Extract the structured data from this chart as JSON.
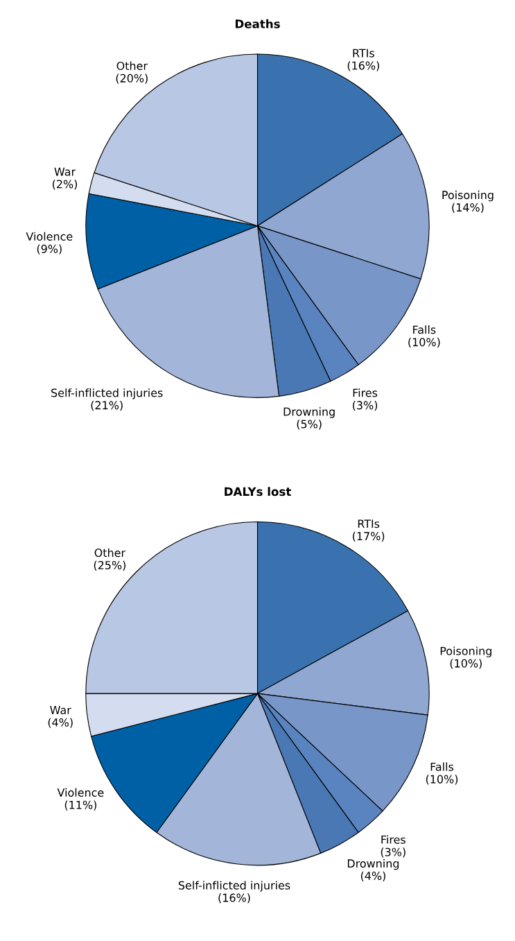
{
  "chart_data": [
    {
      "type": "pie",
      "title": "Deaths",
      "categories": [
        "RTIs",
        "Poisoning",
        "Falls",
        "Fires",
        "Drowning",
        "Self-inflicted injuries",
        "Violence",
        "War",
        "Other"
      ],
      "values": [
        16,
        14,
        10,
        3,
        5,
        21,
        9,
        2,
        20
      ],
      "value_labels": [
        "(16%)",
        "(14%)",
        "(10%)",
        "(3%)",
        "(5%)",
        "(21%)",
        "(9%)",
        "(2%)",
        "(20%)"
      ],
      "colors": [
        "#3a72b0",
        "#8fa7d1",
        "#7896c8",
        "#5a84bf",
        "#4a78b5",
        "#a3b6da",
        "#0060a5",
        "#d4ddef",
        "#b8c7e3"
      ]
    },
    {
      "type": "pie",
      "title": "DALYs lost",
      "categories": [
        "RTIs",
        "Poisoning",
        "Falls",
        "Fires",
        "Drowning",
        "Self-inflicted injuries",
        "Violence",
        "War",
        "Other"
      ],
      "values": [
        17,
        10,
        10,
        3,
        4,
        16,
        11,
        4,
        25
      ],
      "value_labels": [
        "(17%)",
        "(10%)",
        "(10%)",
        "(3%)",
        "(4%)",
        "(16%)",
        "(11%)",
        "(4%)",
        "(25%)"
      ],
      "colors": [
        "#3a72b0",
        "#8fa7d1",
        "#7896c8",
        "#5a84bf",
        "#4a78b5",
        "#a3b6da",
        "#0060a5",
        "#d4ddef",
        "#b8c7e3"
      ]
    }
  ]
}
